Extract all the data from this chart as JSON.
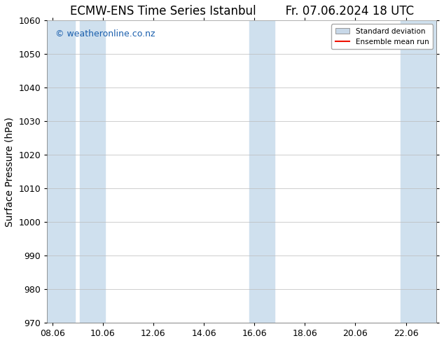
{
  "title_left": "ECMW-ENS Time Series Istanbul",
  "title_right": "Fr. 07.06.2024 18 UTC",
  "ylabel": "Surface Pressure (hPa)",
  "ylim": [
    970,
    1060
  ],
  "yticks": [
    970,
    980,
    990,
    1000,
    1010,
    1020,
    1030,
    1040,
    1050,
    1060
  ],
  "xtick_labels": [
    "08.06",
    "10.06",
    "12.06",
    "14.06",
    "16.06",
    "18.06",
    "20.06",
    "22.06"
  ],
  "xtick_positions": [
    0,
    2,
    4,
    6,
    8,
    10,
    12,
    14
  ],
  "xlim": [
    -0.2,
    15.2
  ],
  "shaded_bands": [
    {
      "x_start": -0.2,
      "x_end": 0.9,
      "color": "#cfe0ee"
    },
    {
      "x_start": 1.1,
      "x_end": 2.1,
      "color": "#cfe0ee"
    },
    {
      "x_start": 7.8,
      "x_end": 8.8,
      "color": "#cfe0ee"
    },
    {
      "x_start": 13.8,
      "x_end": 15.2,
      "color": "#cfe0ee"
    }
  ],
  "watermark_text": "© weatheronline.co.nz",
  "watermark_color": "#1a5fad",
  "legend_std_dev_color": "#c8d8e8",
  "legend_mean_color": "#ee1100",
  "background_color": "#ffffff",
  "plot_bg_color": "#ffffff",
  "grid_color": "#bbbbbb",
  "title_fontsize": 12,
  "axis_label_fontsize": 10,
  "tick_fontsize": 9,
  "watermark_fontsize": 9
}
